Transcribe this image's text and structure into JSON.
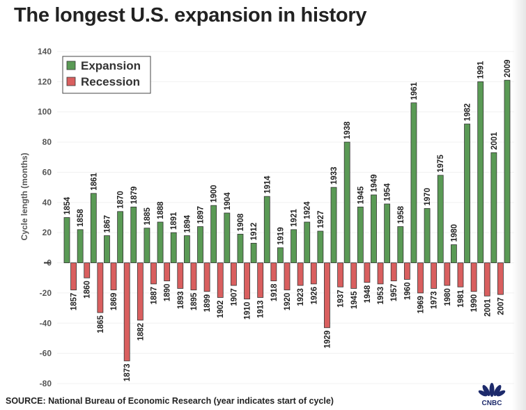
{
  "title": "The longest U.S. expansion in history",
  "source": "SOURCE: National Bureau of Economic Research (year indicates start of cycle)",
  "logo_text": "CNBC",
  "colors": {
    "expansion": "#5a9a55",
    "recession": "#d95f5f"
  },
  "chart_data": {
    "type": "bar",
    "title": "The longest U.S. expansion in history",
    "xlabel": "",
    "ylabel": "Cycle length (months)",
    "ylim": [
      -80,
      140
    ],
    "yticks": [
      140,
      120,
      100,
      80,
      60,
      40,
      20,
      0,
      -20,
      -40,
      -60,
      -80
    ],
    "grid": true,
    "legend": {
      "position": "top-left",
      "entries": [
        "Expansion",
        "Recession"
      ]
    },
    "series": [
      {
        "name": "Expansion",
        "years": [
          "1854",
          "1858",
          "1861",
          "1867",
          "1870",
          "1879",
          "1885",
          "1888",
          "1891",
          "1894",
          "1897",
          "1900",
          "1904",
          "1908",
          "1912",
          "1914",
          "1919",
          "1921",
          "1924",
          "1927",
          "1933",
          "1938",
          "1945",
          "1949",
          "1954",
          "1958",
          "1961",
          "1970",
          "1975",
          "1980",
          "1982",
          "1991",
          "2001",
          "2009"
        ],
        "values": [
          30,
          22,
          46,
          18,
          34,
          37,
          23,
          27,
          20,
          18,
          24,
          38,
          33,
          19,
          13,
          44,
          10,
          22,
          27,
          21,
          50,
          80,
          37,
          45,
          39,
          24,
          106,
          36,
          58,
          12,
          92,
          120,
          73,
          121
        ]
      },
      {
        "name": "Recession",
        "years": [
          "1857",
          "1860",
          "1865",
          "1869",
          "1873",
          "1882",
          "1887",
          "1890",
          "1893",
          "1895",
          "1899",
          "1902",
          "1907",
          "1910",
          "1913",
          "1918",
          "1920",
          "1923",
          "1926",
          "1929",
          "1937",
          "1945",
          "1948",
          "1953",
          "1957",
          "1960",
          "1969",
          "1973",
          "1980",
          "1981",
          "1990",
          "2001",
          "2007"
        ],
        "values": [
          -18,
          -10,
          -33,
          -18,
          -65,
          -38,
          -14,
          -12,
          -17,
          -18,
          -19,
          -23,
          -15,
          -24,
          -23,
          -12,
          -18,
          -15,
          -14,
          -43,
          -16,
          -17,
          -13,
          -14,
          -12,
          -11,
          -20,
          -17,
          -15,
          -16,
          -19,
          -22,
          -21
        ]
      }
    ]
  }
}
